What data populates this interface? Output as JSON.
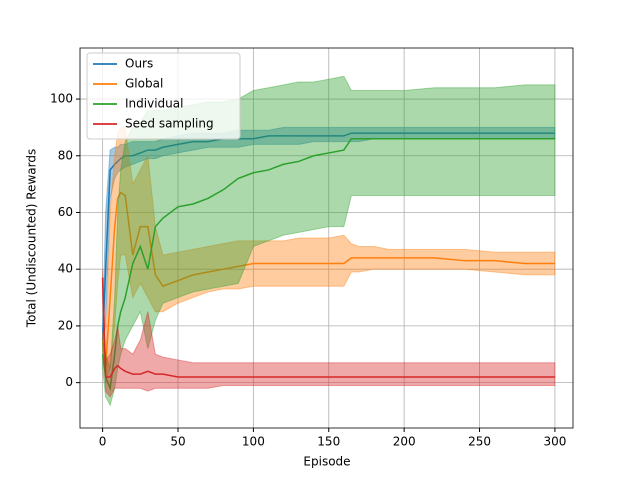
{
  "chart_data": {
    "type": "line",
    "xlabel": "Episode",
    "ylabel": "Total (Undiscounted) Rewards",
    "x": [
      0,
      2,
      5,
      8,
      10,
      12,
      15,
      20,
      25,
      30,
      35,
      40,
      50,
      60,
      70,
      80,
      90,
      100,
      110,
      120,
      130,
      140,
      150,
      160,
      165,
      170,
      180,
      190,
      200,
      220,
      240,
      260,
      280,
      300
    ],
    "series": [
      {
        "name": "Ours",
        "color": "#1f77b4",
        "values": [
          15,
          40,
          75,
          77,
          78,
          79,
          80,
          80,
          81,
          82,
          82,
          83,
          84,
          85,
          85,
          86,
          86,
          86,
          87,
          87,
          87,
          87,
          87,
          87,
          88,
          88,
          88,
          88,
          88,
          88,
          88,
          88,
          88,
          88
        ],
        "lower": [
          12,
          20,
          65,
          72,
          74,
          75,
          76,
          77,
          78,
          79,
          79,
          80,
          81,
          82,
          83,
          83,
          83,
          84,
          84,
          84,
          84,
          85,
          85,
          85,
          85,
          85,
          86,
          86,
          86,
          86,
          86,
          86,
          86,
          86
        ],
        "upper": [
          18,
          60,
          82,
          83,
          83,
          84,
          84,
          85,
          85,
          85,
          85,
          86,
          87,
          88,
          88,
          88,
          89,
          89,
          89,
          90,
          90,
          90,
          90,
          90,
          90,
          90,
          90,
          90,
          90,
          90,
          90,
          90,
          90,
          90
        ]
      },
      {
        "name": "Global",
        "color": "#ff7f0e",
        "values": [
          15,
          5,
          30,
          55,
          65,
          67,
          66,
          45,
          55,
          55,
          38,
          34,
          36,
          38,
          39,
          40,
          41,
          42,
          42,
          42,
          42,
          42,
          42,
          42,
          44,
          44,
          44,
          44,
          44,
          44,
          43,
          43,
          42,
          42
        ],
        "lower": [
          12,
          0,
          5,
          20,
          35,
          45,
          45,
          30,
          35,
          30,
          25,
          25,
          28,
          30,
          32,
          33,
          33,
          34,
          34,
          34,
          34,
          34,
          34,
          34,
          39,
          39,
          40,
          40,
          40,
          40,
          40,
          39,
          38,
          38
        ],
        "upper": [
          18,
          10,
          60,
          80,
          88,
          90,
          90,
          70,
          75,
          80,
          55,
          45,
          46,
          47,
          48,
          49,
          50,
          50,
          50,
          50,
          51,
          51,
          51,
          52,
          49,
          48,
          48,
          47,
          47,
          47,
          47,
          46,
          46,
          46
        ]
      },
      {
        "name": "Individual",
        "color": "#2ca02c",
        "values": [
          10,
          2,
          -2,
          10,
          20,
          25,
          30,
          42,
          48,
          40,
          55,
          58,
          62,
          63,
          65,
          68,
          72,
          74,
          75,
          77,
          78,
          80,
          81,
          82,
          86,
          86,
          86,
          86,
          86,
          86,
          86,
          86,
          86,
          86
        ],
        "lower": [
          5,
          -5,
          -8,
          -2,
          5,
          10,
          15,
          20,
          25,
          12,
          22,
          28,
          30,
          32,
          33,
          34,
          35,
          48,
          50,
          52,
          53,
          54,
          55,
          55,
          66,
          66,
          66,
          66,
          66,
          66,
          66,
          66,
          66,
          66
        ],
        "upper": [
          15,
          10,
          5,
          30,
          60,
          75,
          85,
          90,
          92,
          96,
          96,
          96,
          97,
          98,
          99,
          99,
          100,
          103,
          104,
          105,
          106,
          106,
          107,
          108,
          103,
          103,
          103,
          103,
          103,
          104,
          104,
          104,
          105,
          105
        ]
      },
      {
        "name": "Seed sampling",
        "color": "#d62728",
        "values": [
          37,
          2,
          2,
          5,
          6,
          5,
          4,
          3,
          3,
          4,
          3,
          3,
          2,
          2,
          2,
          2,
          2,
          2,
          2,
          2,
          2,
          2,
          2,
          2,
          2,
          2,
          2,
          2,
          2,
          2,
          2,
          2,
          2,
          2
        ],
        "lower": [
          30,
          -3,
          -5,
          -2,
          -2,
          -2,
          -2,
          -2,
          -2,
          -3,
          -2,
          -2,
          -2,
          -2,
          -2,
          -1,
          -1,
          -1,
          -1,
          -1,
          -1,
          -1,
          -1,
          -1,
          -1,
          -1,
          -1,
          -1,
          -1,
          -1,
          -1,
          -1,
          -1,
          -1
        ],
        "upper": [
          40,
          8,
          10,
          15,
          20,
          12,
          12,
          10,
          15,
          25,
          10,
          9,
          8,
          7,
          7,
          7,
          7,
          7,
          7,
          7,
          7,
          7,
          7,
          7,
          7,
          7,
          7,
          7,
          7,
          7,
          7,
          7,
          7,
          7
        ]
      }
    ],
    "xlim": [
      -15,
      312
    ],
    "ylim": [
      -16,
      118
    ],
    "xticks": [
      0,
      50,
      100,
      150,
      200,
      250,
      300
    ],
    "yticks": [
      0,
      20,
      40,
      60,
      80,
      100
    ],
    "grid": true,
    "legend": "upper left",
    "band_opacity": 0.4
  }
}
